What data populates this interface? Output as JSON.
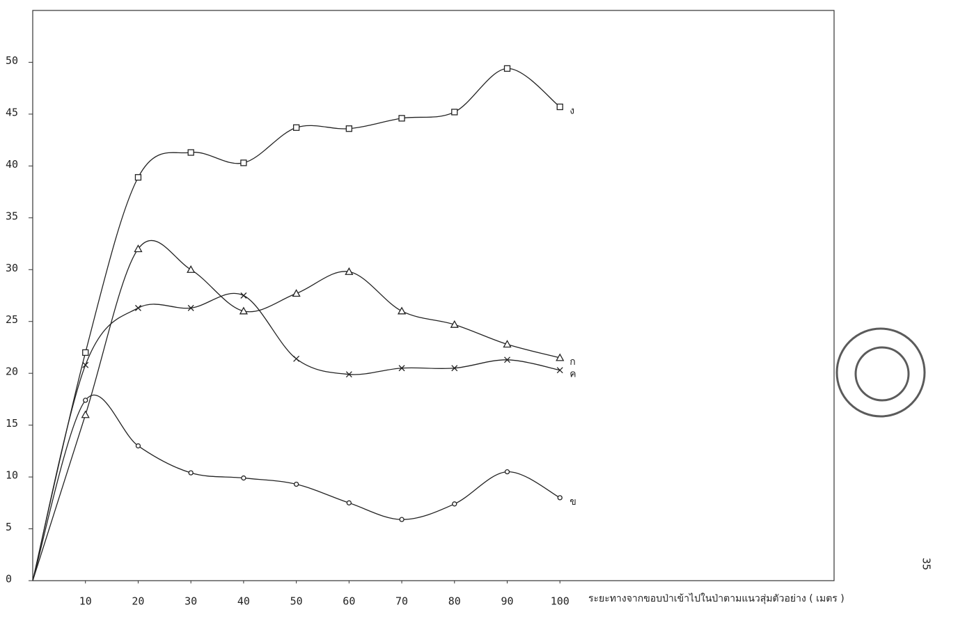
{
  "chart_data": {
    "type": "line",
    "x": [
      0,
      10,
      20,
      30,
      40,
      50,
      60,
      70,
      80,
      90,
      100
    ],
    "xlim": [
      0,
      152
    ],
    "ylim": [
      0,
      55
    ],
    "xticks": [
      10,
      20,
      30,
      40,
      50,
      60,
      70,
      80,
      90,
      100
    ],
    "yticks": [
      0,
      5,
      10,
      15,
      20,
      25,
      30,
      35,
      40,
      45,
      50
    ],
    "x_label": "ระยะทางจากขอบป่าเข้าไปในป่าตามแนวสุ่มตัวอย่าง ( เมตร )",
    "page_number": "35",
    "series": [
      {
        "name": "ก",
        "color": "#222222",
        "marker": "triangle",
        "values": [
          0,
          16,
          32,
          30,
          26,
          27.7,
          29.8,
          26,
          24.7,
          22.8,
          21.5
        ]
      },
      {
        "name": "ข",
        "color": "#222222",
        "marker": "circle",
        "values": [
          0,
          17.4,
          13,
          10.4,
          9.9,
          9.3,
          7.5,
          5.9,
          7.4,
          10.5,
          8
        ]
      },
      {
        "name": "ค",
        "color": "#222222",
        "marker": "cross",
        "values": [
          0,
          20.8,
          26.3,
          26.3,
          27.5,
          21.4,
          19.9,
          20.5,
          20.5,
          21.3,
          20.3
        ]
      },
      {
        "name": "ง",
        "color": "#222222",
        "marker": "square",
        "values": [
          0,
          22,
          38.9,
          41.3,
          40.3,
          43.7,
          43.6,
          44.6,
          45.2,
          49.4,
          45.7
        ]
      }
    ]
  }
}
